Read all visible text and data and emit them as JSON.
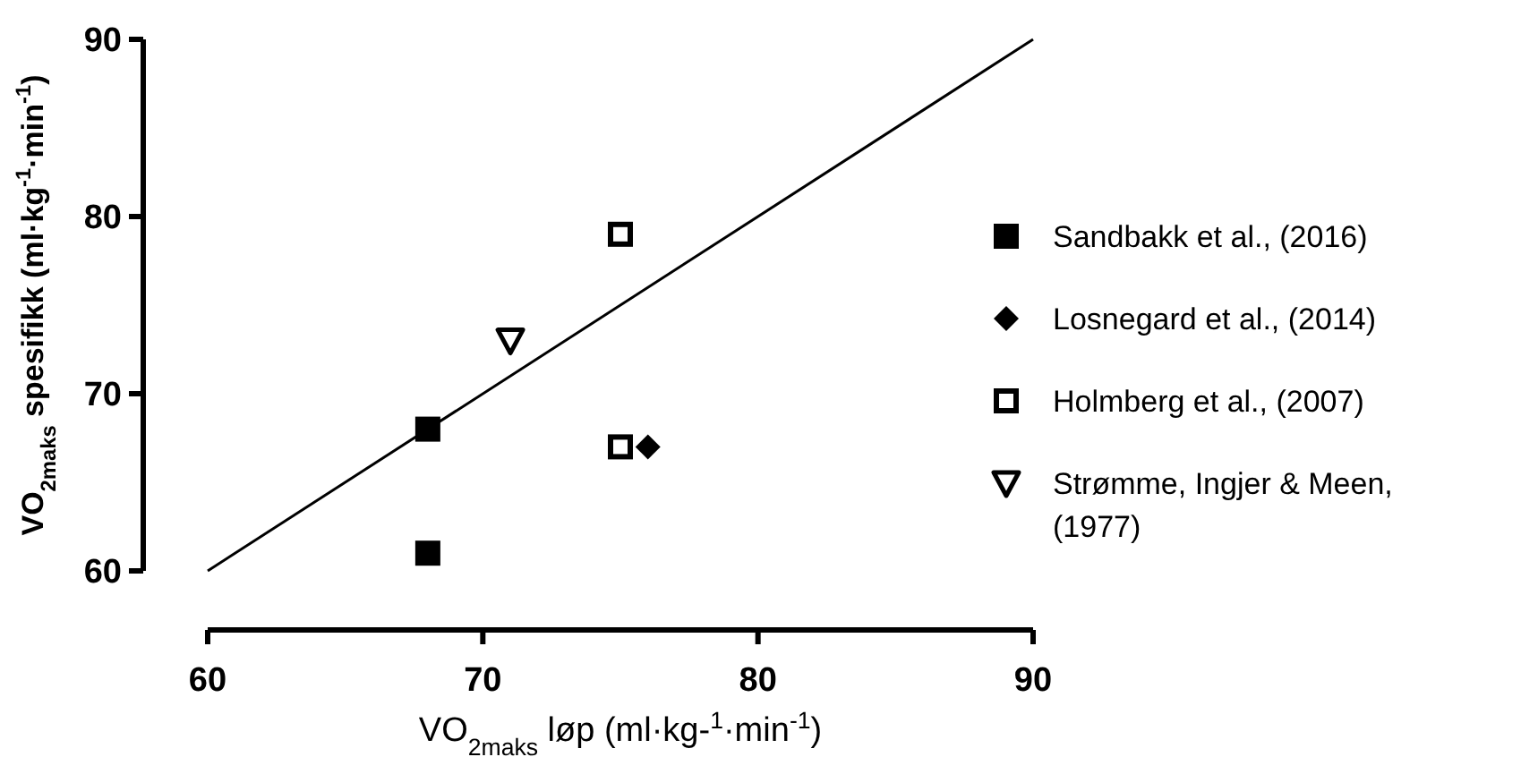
{
  "chart_data": {
    "type": "scatter",
    "xlabel": "VO$_{2maks}$ løp (ml·kg-$^{1}$·min$^{-1}$)",
    "ylabel": "VO$_{2maks}$ spesifikk (ml·kg$^{-1}$·min$^{-1}$)",
    "xlim": [
      60,
      90
    ],
    "xticks": [
      60,
      70,
      80,
      90
    ],
    "ylim": [
      60,
      90
    ],
    "yticks": [
      60,
      70,
      80,
      90
    ],
    "grid": false,
    "legend": "right",
    "series": [
      {
        "name": "Sandbakk et al., (2016)",
        "color": "#000000",
        "marker": "square",
        "x": [
          68,
          68
        ],
        "values": [
          68,
          61
        ]
      },
      {
        "name": "Losnegard et al., (2014)",
        "color": "#000000",
        "marker": "diamond",
        "x": [
          76
        ],
        "values": [
          67
        ]
      },
      {
        "name": "Holmberg et al., (2007)",
        "color": "#000000",
        "marker": "square-open",
        "x": [
          75,
          75
        ],
        "values": [
          79,
          67
        ]
      },
      {
        "name": "Strømme, Ingjer & Meen, (1977)",
        "color": "#000000",
        "marker": "triangle-down-open",
        "x": [
          71
        ],
        "values": [
          73
        ]
      },
      {
        "type": "line",
        "color": "#000000",
        "marker": "none",
        "line_style": "solid",
        "x": [
          60,
          90
        ],
        "values": [
          60,
          90
        ]
      }
    ]
  }
}
